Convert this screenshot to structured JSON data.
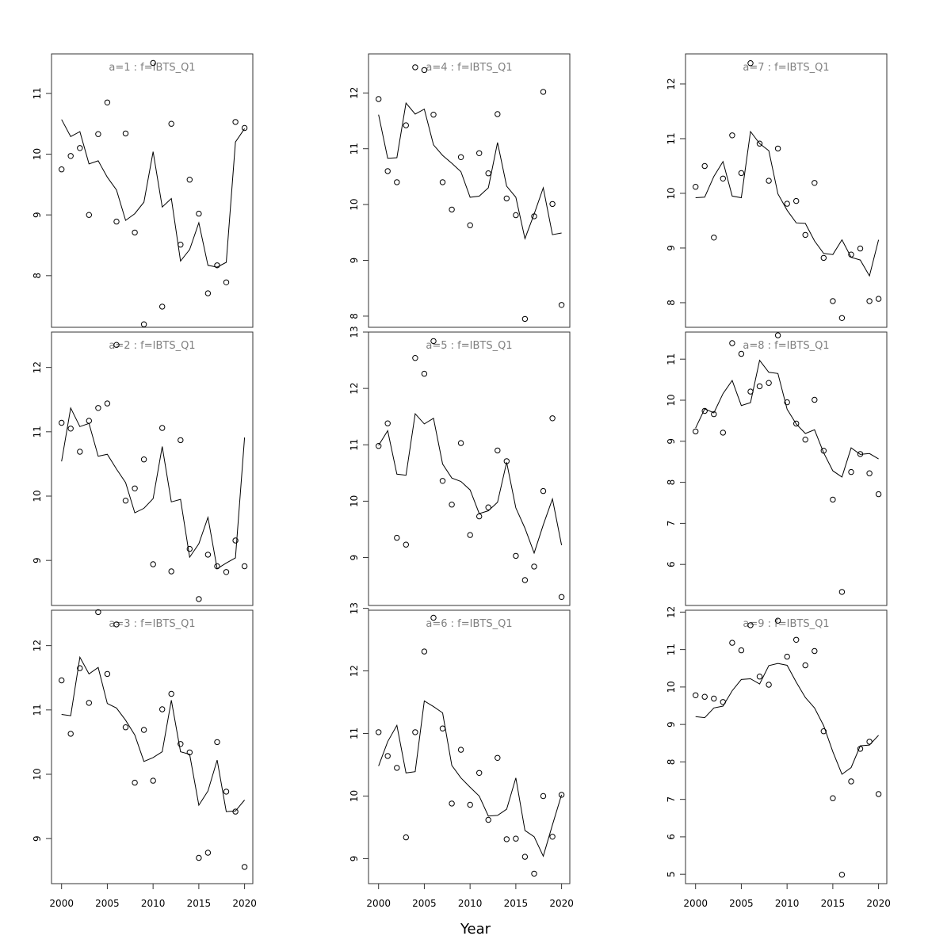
{
  "figure": {
    "xlabel": "Year",
    "x_ticks": [
      2000,
      2005,
      2010,
      2015,
      2020
    ]
  },
  "chart_data": [
    {
      "type": "scatter",
      "title": "a=1  :  f=IBTS_Q1",
      "xlim": [
        1998.9,
        2020.9
      ],
      "ylim": [
        7.15,
        11.65
      ],
      "y_ticks": [
        8,
        9,
        10,
        11
      ],
      "series": [
        {
          "x": [
            2000,
            2001,
            2002,
            2003,
            2004,
            2005,
            2006,
            2007,
            2008,
            2009,
            2010,
            2011,
            2012,
            2013,
            2014,
            2015,
            2016,
            2017,
            2018,
            2019,
            2020
          ],
          "y": [
            9.75,
            9.97,
            10.1,
            9.0,
            10.33,
            10.85,
            8.89,
            10.34,
            8.71,
            7.2,
            11.5,
            7.49,
            10.5,
            8.51,
            9.58,
            9.02,
            7.71,
            8.17,
            7.89,
            10.53,
            10.43
          ]
        },
        {
          "x": [
            2000,
            2001,
            2002,
            2003,
            2004,
            2005,
            2006,
            2007,
            2008,
            2009,
            2010,
            2011,
            2012,
            2013,
            2014,
            2015,
            2016,
            2017,
            2018,
            2019,
            2020
          ],
          "y": [
            10.57,
            10.29,
            10.37,
            9.84,
            9.89,
            9.62,
            9.41,
            8.91,
            9.02,
            9.21,
            10.04,
            9.13,
            9.27,
            8.24,
            8.43,
            8.87,
            8.17,
            8.14,
            8.22,
            10.2,
            10.42
          ]
        }
      ]
    },
    {
      "type": "scatter",
      "title": "a=2  :  f=IBTS_Q1",
      "xlim": [
        1998.9,
        2020.9
      ],
      "ylim": [
        8.3,
        12.55
      ],
      "y_ticks": [
        9,
        10,
        11,
        12
      ],
      "series": [
        {
          "x": [
            2000,
            2001,
            2002,
            2003,
            2004,
            2005,
            2006,
            2007,
            2008,
            2009,
            2010,
            2011,
            2012,
            2013,
            2014,
            2015,
            2016,
            2017,
            2018,
            2019,
            2020
          ],
          "y": [
            11.14,
            11.05,
            10.69,
            11.17,
            11.37,
            11.44,
            12.35,
            9.93,
            10.12,
            10.57,
            8.94,
            11.06,
            8.83,
            10.87,
            9.18,
            8.4,
            9.09,
            8.91,
            8.82,
            9.31,
            8.91
          ]
        },
        {
          "x": [
            2000,
            2001,
            2002,
            2003,
            2004,
            2005,
            2006,
            2007,
            2008,
            2009,
            2010,
            2011,
            2012,
            2013,
            2014,
            2015,
            2016,
            2017,
            2018,
            2019,
            2020
          ],
          "y": [
            10.54,
            11.37,
            11.08,
            11.13,
            10.62,
            10.65,
            10.42,
            10.21,
            9.74,
            9.81,
            9.96,
            10.77,
            9.91,
            9.95,
            9.05,
            9.26,
            9.67,
            8.87,
            8.96,
            9.04,
            10.91
          ]
        }
      ]
    },
    {
      "type": "scatter",
      "title": "a=3  :  f=IBTS_Q1",
      "xlim": [
        1998.9,
        2020.9
      ],
      "ylim": [
        8.3,
        12.55
      ],
      "y_ticks": [
        9,
        10,
        11,
        12
      ],
      "series": [
        {
          "x": [
            2000,
            2001,
            2002,
            2003,
            2004,
            2005,
            2006,
            2007,
            2008,
            2009,
            2010,
            2011,
            2012,
            2013,
            2014,
            2015,
            2016,
            2017,
            2018,
            2019,
            2020
          ],
          "y": [
            11.46,
            10.63,
            11.65,
            11.11,
            12.52,
            11.56,
            12.33,
            10.73,
            9.87,
            10.69,
            9.9,
            11.01,
            11.25,
            10.47,
            10.34,
            8.7,
            8.78,
            10.5,
            9.73,
            9.42,
            8.56
          ]
        },
        {
          "x": [
            2000,
            2001,
            2002,
            2003,
            2004,
            2005,
            2006,
            2007,
            2008,
            2009,
            2010,
            2011,
            2012,
            2013,
            2014,
            2015,
            2016,
            2017,
            2018,
            2019,
            2020
          ],
          "y": [
            10.93,
            10.91,
            11.82,
            11.56,
            11.66,
            11.1,
            11.03,
            10.84,
            10.61,
            10.2,
            10.26,
            10.35,
            11.15,
            10.35,
            10.31,
            9.52,
            9.74,
            10.22,
            9.42,
            9.43,
            9.6
          ]
        }
      ]
    },
    {
      "type": "scatter",
      "title": "a=4  :  f=IBTS_Q1",
      "xlim": [
        1998.9,
        2020.9
      ],
      "ylim": [
        7.8,
        12.7
      ],
      "y_ticks": [
        8,
        9,
        10,
        11,
        12
      ],
      "series": [
        {
          "x": [
            2000,
            2001,
            2002,
            2003,
            2004,
            2005,
            2006,
            2007,
            2008,
            2009,
            2010,
            2011,
            2012,
            2013,
            2014,
            2015,
            2016,
            2017,
            2018,
            2019,
            2020
          ],
          "y": [
            11.89,
            10.6,
            10.4,
            11.42,
            12.46,
            12.41,
            11.61,
            10.4,
            9.91,
            10.85,
            9.63,
            10.92,
            10.56,
            11.62,
            10.11,
            9.81,
            7.95,
            9.79,
            12.02,
            10.01,
            8.2
          ]
        },
        {
          "x": [
            2000,
            2001,
            2002,
            2003,
            2004,
            2005,
            2006,
            2007,
            2008,
            2009,
            2010,
            2011,
            2012,
            2013,
            2014,
            2015,
            2016,
            2017,
            2018,
            2019,
            2020
          ],
          "y": [
            11.61,
            10.83,
            10.84,
            11.82,
            11.62,
            11.71,
            11.07,
            10.88,
            10.74,
            10.59,
            10.13,
            10.15,
            10.3,
            11.11,
            10.33,
            10.13,
            9.39,
            9.83,
            10.3,
            9.46,
            9.49
          ]
        }
      ]
    },
    {
      "type": "scatter",
      "title": "a=5  :  f=IBTS_Q1",
      "xlim": [
        1998.9,
        2020.9
      ],
      "ylim": [
        8.15,
        13.0
      ],
      "y_ticks": [
        9,
        10,
        11,
        12,
        13
      ],
      "series": [
        {
          "x": [
            2000,
            2001,
            2002,
            2003,
            2004,
            2005,
            2006,
            2007,
            2008,
            2009,
            2010,
            2011,
            2012,
            2013,
            2014,
            2015,
            2016,
            2017,
            2018,
            2019,
            2020
          ],
          "y": [
            10.98,
            11.38,
            9.35,
            9.23,
            12.54,
            12.26,
            12.84,
            10.36,
            9.94,
            11.03,
            9.4,
            9.73,
            9.89,
            10.9,
            10.71,
            9.03,
            8.6,
            8.84,
            10.18,
            11.47,
            8.3
          ]
        },
        {
          "x": [
            2000,
            2001,
            2002,
            2003,
            2004,
            2005,
            2006,
            2007,
            2008,
            2009,
            2010,
            2011,
            2012,
            2013,
            2014,
            2015,
            2016,
            2017,
            2018,
            2019,
            2020
          ],
          "y": [
            10.99,
            11.25,
            10.48,
            10.46,
            11.55,
            11.37,
            11.47,
            10.66,
            10.41,
            10.35,
            10.2,
            9.78,
            9.83,
            9.98,
            10.69,
            9.88,
            9.52,
            9.08,
            9.58,
            10.04,
            9.22
          ]
        }
      ]
    },
    {
      "type": "scatter",
      "title": "a=6  :  f=IBTS_Q1",
      "xlim": [
        1998.9,
        2020.9
      ],
      "ylim": [
        8.6,
        12.97
      ],
      "y_ticks": [
        9,
        10,
        11,
        12,
        13
      ],
      "series": [
        {
          "x": [
            2000,
            2001,
            2002,
            2003,
            2004,
            2005,
            2006,
            2007,
            2008,
            2009,
            2010,
            2011,
            2012,
            2013,
            2014,
            2015,
            2016,
            2017,
            2018,
            2019,
            2020
          ],
          "y": [
            11.02,
            10.64,
            10.45,
            9.34,
            11.02,
            12.31,
            12.85,
            11.08,
            9.88,
            10.74,
            9.86,
            10.37,
            9.62,
            10.61,
            9.31,
            9.32,
            9.03,
            8.76,
            10.0,
            9.35,
            10.02
          ]
        },
        {
          "x": [
            2000,
            2001,
            2002,
            2003,
            2004,
            2005,
            2006,
            2007,
            2008,
            2009,
            2010,
            2011,
            2012,
            2013,
            2014,
            2015,
            2016,
            2017,
            2018,
            2019,
            2020
          ],
          "y": [
            10.48,
            10.87,
            11.13,
            10.37,
            10.39,
            11.52,
            11.43,
            11.33,
            10.49,
            10.29,
            10.14,
            10.0,
            9.68,
            9.69,
            9.79,
            10.29,
            9.45,
            9.35,
            9.04,
            9.54,
            10.02
          ]
        }
      ]
    },
    {
      "type": "scatter",
      "title": "a=7  :  f=IBTS_Q1",
      "xlim": [
        1998.9,
        2020.9
      ],
      "ylim": [
        7.55,
        12.55
      ],
      "y_ticks": [
        8,
        9,
        10,
        11,
        12
      ],
      "series": [
        {
          "x": [
            2000,
            2001,
            2002,
            2003,
            2004,
            2005,
            2006,
            2007,
            2008,
            2009,
            2010,
            2011,
            2012,
            2013,
            2014,
            2015,
            2016,
            2017,
            2018,
            2019,
            2020
          ],
          "y": [
            10.12,
            10.5,
            9.19,
            10.27,
            11.06,
            10.37,
            12.38,
            10.91,
            10.23,
            10.82,
            9.81,
            9.86,
            9.24,
            10.19,
            8.82,
            8.03,
            7.72,
            8.88,
            8.99,
            8.03,
            8.07
          ]
        },
        {
          "x": [
            2000,
            2001,
            2002,
            2003,
            2004,
            2005,
            2006,
            2007,
            2008,
            2009,
            2010,
            2011,
            2012,
            2013,
            2014,
            2015,
            2016,
            2017,
            2018,
            2019,
            2020
          ],
          "y": [
            9.92,
            9.93,
            10.31,
            10.58,
            9.95,
            9.92,
            11.13,
            10.91,
            10.78,
            9.99,
            9.69,
            9.46,
            9.45,
            9.13,
            8.9,
            8.88,
            9.15,
            8.83,
            8.78,
            8.49,
            9.15
          ]
        }
      ]
    },
    {
      "type": "scatter",
      "title": "a=8  :  f=IBTS_Q1",
      "xlim": [
        1998.9,
        2020.9
      ],
      "ylim": [
        5.0,
        11.66
      ],
      "y_ticks": [
        6,
        7,
        8,
        9,
        10,
        11
      ],
      "series": [
        {
          "x": [
            2000,
            2001,
            2002,
            2003,
            2004,
            2005,
            2006,
            2007,
            2008,
            2009,
            2010,
            2011,
            2012,
            2013,
            2014,
            2015,
            2016,
            2017,
            2018,
            2019,
            2020
          ],
          "y": [
            9.24,
            9.74,
            9.66,
            9.21,
            11.39,
            11.13,
            10.21,
            10.34,
            10.42,
            11.58,
            9.95,
            9.43,
            9.04,
            10.01,
            8.77,
            7.58,
            5.33,
            8.25,
            8.69,
            8.22,
            7.71
          ]
        },
        {
          "x": [
            2000,
            2001,
            2002,
            2003,
            2004,
            2005,
            2006,
            2007,
            2008,
            2009,
            2010,
            2011,
            2012,
            2013,
            2014,
            2015,
            2016,
            2017,
            2018,
            2019,
            2020
          ],
          "y": [
            9.32,
            9.79,
            9.69,
            10.16,
            10.48,
            9.87,
            9.94,
            10.97,
            10.68,
            10.65,
            9.78,
            9.42,
            9.19,
            9.28,
            8.72,
            8.28,
            8.13,
            8.84,
            8.68,
            8.7,
            8.57
          ]
        }
      ]
    },
    {
      "type": "scatter",
      "title": "a=9  :  f=IBTS_Q1",
      "xlim": [
        1998.9,
        2020.9
      ],
      "ylim": [
        4.75,
        12.05
      ],
      "y_ticks": [
        5,
        6,
        7,
        8,
        9,
        10,
        11,
        12
      ],
      "series": [
        {
          "x": [
            2000,
            2001,
            2002,
            2003,
            2004,
            2005,
            2006,
            2007,
            2008,
            2009,
            2010,
            2011,
            2012,
            2013,
            2014,
            2015,
            2016,
            2017,
            2018,
            2019,
            2020
          ],
          "y": [
            9.78,
            9.74,
            9.69,
            9.6,
            11.18,
            10.98,
            11.65,
            10.28,
            10.06,
            11.77,
            10.81,
            11.26,
            10.58,
            10.96,
            8.82,
            7.03,
            4.99,
            7.48,
            8.35,
            8.54,
            7.14
          ]
        },
        {
          "x": [
            2000,
            2001,
            2002,
            2003,
            2004,
            2005,
            2006,
            2007,
            2008,
            2009,
            2010,
            2011,
            2012,
            2013,
            2014,
            2015,
            2016,
            2017,
            2018,
            2019,
            2020
          ],
          "y": [
            9.21,
            9.18,
            9.44,
            9.49,
            9.9,
            10.2,
            10.22,
            10.08,
            10.57,
            10.63,
            10.58,
            10.13,
            9.72,
            9.44,
            8.97,
            8.27,
            7.67,
            7.85,
            8.43,
            8.45,
            8.71
          ]
        }
      ]
    }
  ]
}
